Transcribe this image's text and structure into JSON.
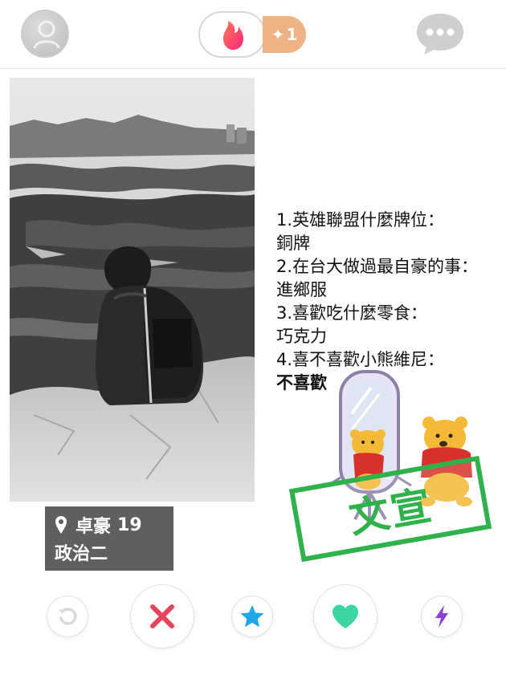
{
  "header": {
    "boost_count": "1"
  },
  "profile": {
    "name": "卓豪",
    "age": "19",
    "subtitle": "政治二",
    "bio": [
      "1.英雄聯盟什麼牌位：",
      "銅牌",
      "2.在台大做過最自豪的事：",
      "進鄉服",
      "3.喜歡吃什麼零食：",
      "巧克力",
      "4.喜不喜歡小熊維尼：",
      "不喜歡"
    ]
  },
  "stamp": {
    "text": "文宣"
  },
  "colors": {
    "tinder_red": "#fd4f5f",
    "boost_orange": "#eeb384",
    "stamp_green": "#2fb24c",
    "nope_red": "#e8455a",
    "superlike_blue": "#1ea8e8",
    "like_green": "#3fd4a4",
    "boost_purple": "#8b3fd6"
  },
  "icons": {
    "avatar": "profile-icon",
    "logo": "flame-icon",
    "boost": "sparkle-icon",
    "chat": "chat-bubble-icon",
    "location": "location-pin-icon",
    "rewind": "rewind-icon",
    "nope": "x-icon",
    "superlike": "star-icon",
    "like": "heart-icon",
    "boost_action": "lightning-icon"
  }
}
